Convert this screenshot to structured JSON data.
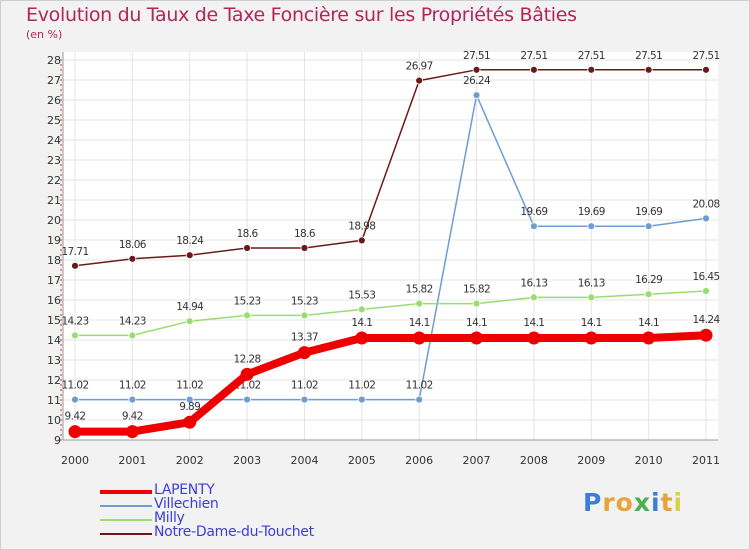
{
  "chart_data": {
    "type": "line",
    "title": "Evolution du Taux de Taxe Foncière sur les Propriétés Bâties",
    "unit_label": "(en %)",
    "categories": [
      "2000",
      "2001",
      "2002",
      "2003",
      "2004",
      "2005",
      "2006",
      "2007",
      "2008",
      "2009",
      "2010",
      "2011"
    ],
    "ylim": [
      9,
      28
    ],
    "yticks": [
      9,
      10,
      11,
      12,
      13,
      14,
      15,
      16,
      17,
      18,
      19,
      20,
      21,
      22,
      23,
      24,
      25,
      26,
      27,
      28
    ],
    "grid": true,
    "legend_position": "bottom-left",
    "series": [
      {
        "name": "Notre-Dame-du-Touchet",
        "color": "#6b1a1a",
        "values": [
          17.71,
          18.06,
          18.24,
          18.6,
          18.6,
          18.98,
          26.97,
          27.51,
          27.51,
          27.51,
          27.51,
          27.51
        ],
        "labels": [
          "17.71",
          "18.06",
          "18.24",
          "18.6",
          "18.6",
          "18.98",
          "26.97",
          "27.51",
          "27.51",
          "27.51",
          "27.51",
          "27.51"
        ]
      },
      {
        "name": "Villechien",
        "color": "#6d9dd1",
        "values": [
          11.02,
          11.02,
          11.02,
          11.02,
          11.02,
          11.02,
          11.02,
          26.24,
          19.69,
          19.69,
          19.69,
          20.08
        ],
        "labels": [
          "11.02",
          "11.02",
          "11.02",
          "11.02",
          "11.02",
          "11.02",
          "11.02",
          "26.24",
          "19.69",
          "19.69",
          "19.69",
          "20.08"
        ]
      },
      {
        "name": "Milly",
        "color": "#99dd6e",
        "values": [
          14.23,
          14.23,
          14.94,
          15.23,
          15.23,
          15.53,
          15.82,
          15.82,
          16.13,
          16.13,
          16.29,
          16.45
        ],
        "labels": [
          "14.23",
          "14.23",
          "14.94",
          "15.23",
          "15.23",
          "15.53",
          "15.82",
          "15.82",
          "16.13",
          "16.13",
          "16.29",
          "16.45"
        ]
      },
      {
        "name": "LAPENTY",
        "color": "#ee0000",
        "values": [
          9.42,
          9.42,
          9.89,
          12.28,
          13.37,
          14.1,
          14.1,
          14.1,
          14.1,
          14.1,
          14.1,
          14.24
        ],
        "labels": [
          "9.42",
          "9.42",
          "9.89",
          "12.28",
          "13.37",
          "14.1",
          "14.1",
          "14.1",
          "14.1",
          "14.1",
          "14.1",
          "14.24"
        ]
      }
    ],
    "legend": [
      {
        "name": "LAPENTY",
        "color": "#ee0000",
        "thick": true
      },
      {
        "name": "Villechien",
        "color": "#6d9dd1",
        "thick": false
      },
      {
        "name": "Milly",
        "color": "#99dd6e",
        "thick": false
      },
      {
        "name": "Notre-Dame-du-Touchet",
        "color": "#6b1a1a",
        "thick": false
      }
    ]
  },
  "logo": {
    "letters": [
      "P",
      "r",
      "o",
      "x",
      "i",
      "t",
      "i"
    ],
    "colors": [
      "#3b7fd4",
      "#e8a33a",
      "#e8a33a",
      "#4caf50",
      "#3b7fd4",
      "#e8a33a",
      "#d8d24a"
    ]
  }
}
